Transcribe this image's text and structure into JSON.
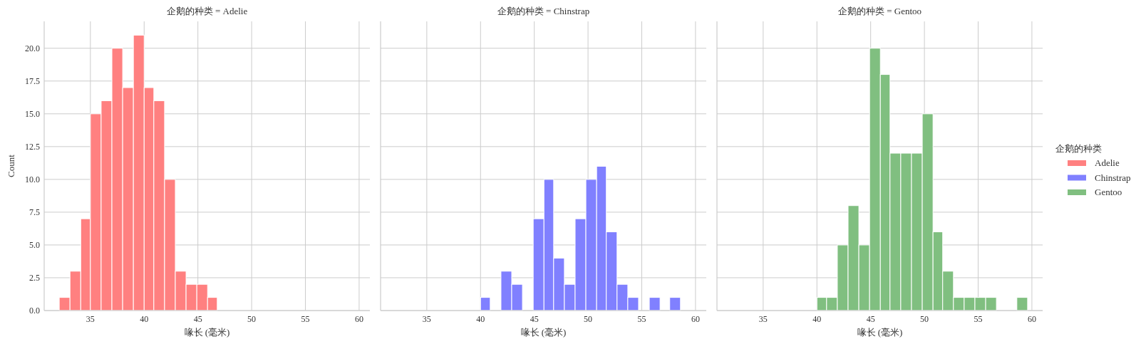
{
  "chart_data": [
    {
      "type": "histogram",
      "title": "企鹅的种类 = Adelie",
      "xlabel": "喙长 (毫米)",
      "ylabel": "Count",
      "bins": [
        32.1,
        33.1,
        34.1,
        35.0,
        36.0,
        37.0,
        38.0,
        39.0,
        40.0,
        40.9,
        41.9,
        42.9,
        43.9,
        44.9,
        45.9,
        46.8
      ],
      "series": [
        {
          "name": "Adelie",
          "color": "#ff8080",
          "values": [
            1,
            3,
            7,
            15,
            16,
            20,
            17,
            21,
            17,
            16,
            10,
            3,
            2,
            2,
            1
          ]
        }
      ],
      "xlim": [
        30.7,
        61.0
      ],
      "ylim": [
        0,
        22.05
      ],
      "xticks": [
        35,
        40,
        45,
        50,
        55,
        60
      ],
      "yticks": [
        {
          "value": 0,
          "label": "0.0"
        },
        {
          "value": 2.5,
          "label": "2.5"
        },
        {
          "value": 5,
          "label": "5.0"
        },
        {
          "value": 7.5,
          "label": "7.5"
        },
        {
          "value": 10,
          "label": "10.0"
        },
        {
          "value": 12.5,
          "label": "12.5"
        },
        {
          "value": 15,
          "label": "15.0"
        },
        {
          "value": 17.5,
          "label": "17.5"
        },
        {
          "value": 20,
          "label": "20.0"
        }
      ],
      "grid": true
    },
    {
      "type": "histogram",
      "title": "企鹅的种类 = Chinstrap",
      "xlabel": "喙长 (毫米)",
      "bins": [
        40.0,
        40.9,
        41.9,
        42.9,
        43.9,
        44.9,
        45.9,
        46.8,
        47.8,
        48.8,
        49.8,
        50.8,
        51.7,
        52.7,
        53.7,
        54.7,
        55.7,
        56.7,
        57.6,
        58.6
      ],
      "series": [
        {
          "name": "Chinstrap",
          "color": "#8080ff",
          "values": [
            1,
            0,
            3,
            2,
            0,
            7,
            10,
            4,
            2,
            7,
            10,
            11,
            6,
            2,
            1,
            0,
            1,
            0,
            1
          ]
        }
      ],
      "xlim": [
        30.7,
        61.0
      ],
      "ylim": [
        0,
        22.05
      ],
      "xticks": [
        35,
        40,
        45,
        50,
        55,
        60
      ],
      "yticks": [
        0,
        2.5,
        5,
        7.5,
        10,
        12.5,
        15,
        17.5,
        20
      ],
      "grid": true,
      "tick_labels": "x"
    },
    {
      "type": "histogram",
      "title": "企鹅的种类 = Gentoo",
      "xlabel": "喙长 (毫米)",
      "bins": [
        40.0,
        40.9,
        41.9,
        42.9,
        43.9,
        44.9,
        45.9,
        46.8,
        47.8,
        48.8,
        49.8,
        50.8,
        51.7,
        52.7,
        53.7,
        54.7,
        55.7,
        56.7,
        58.6,
        59.6
      ],
      "series": [
        {
          "name": "Gentoo",
          "color": "#80bf80",
          "values": [
            1,
            1,
            5,
            8,
            5,
            20,
            18,
            12,
            12,
            12,
            15,
            6,
            3,
            1,
            1,
            1,
            1,
            0,
            1
          ]
        }
      ],
      "xlim": [
        30.7,
        61.0
      ],
      "ylim": [
        0,
        22.05
      ],
      "xticks": [
        35,
        40,
        45,
        50,
        55,
        60
      ],
      "yticks": [
        0,
        2.5,
        5,
        7.5,
        10,
        12.5,
        15,
        17.5,
        20
      ],
      "grid": true,
      "tick_labels": "x",
      "legend": "right",
      "legend_title": "企鹅的种类"
    }
  ]
}
